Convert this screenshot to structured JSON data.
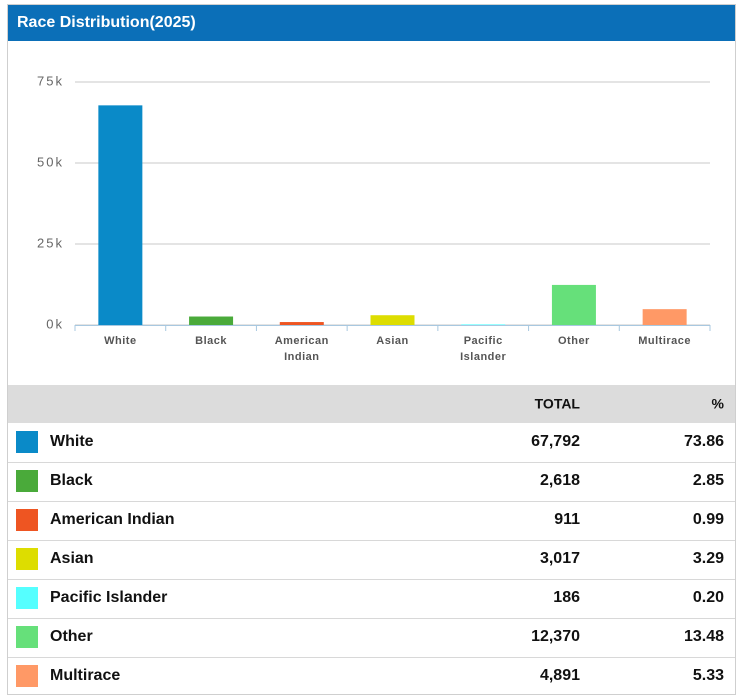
{
  "chart_data": {
    "type": "bar",
    "title": "Race Distribution(2025)",
    "categories": [
      "White",
      "Black",
      "American Indian",
      "Asian",
      "Pacific Islander",
      "Other",
      "Multirace"
    ],
    "values": [
      67792,
      2618,
      911,
      3017,
      186,
      12370,
      4891
    ],
    "value_labels": [
      "67,792",
      "2,618",
      "911",
      "3,017",
      "186",
      "12,370",
      "4,891"
    ],
    "colors": [
      "#0a8ac8",
      "#4aaa3a",
      "#ee5522",
      "#dddd00",
      "#55ffff",
      "#66e07a",
      "#ff9966"
    ],
    "ylim": [
      0,
      75000
    ],
    "yticks": [
      {
        "value": 0,
        "label": "0k"
      },
      {
        "value": 25000,
        "label": "25k"
      },
      {
        "value": 50000,
        "label": "50k"
      },
      {
        "value": 75000,
        "label": "75k"
      }
    ],
    "grid": true
  },
  "table": {
    "headers": [
      "TOTAL",
      "%"
    ],
    "percent": [
      "73.86",
      "2.85",
      "0.99",
      "3.29",
      "0.20",
      "13.48",
      "5.33"
    ]
  }
}
